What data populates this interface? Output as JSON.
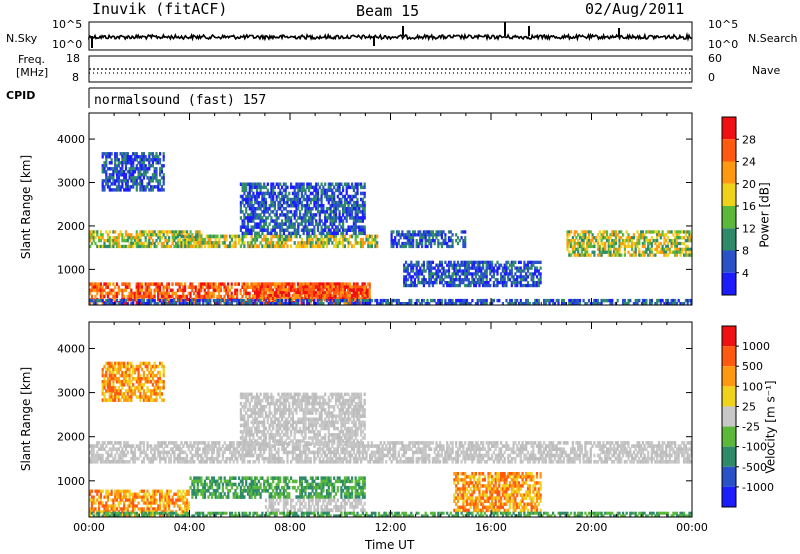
{
  "header": {
    "station": "Inuvik (fitACF)",
    "beam": "Beam 15",
    "date": "02/Aug/2011"
  },
  "params": {
    "nsky_label": "N.Sky",
    "nsky_ticks": [
      "10^5",
      "10^0"
    ],
    "nsearch_label": "N.Search",
    "nsearch_ticks": [
      "10^5",
      "10^0"
    ],
    "freq_label_top": "Freq.",
    "freq_label_bottom": "[MHz]",
    "freq_ticks": [
      "18",
      "8"
    ],
    "nave_label": "Nave",
    "nave_ticks": [
      "60",
      "0"
    ],
    "cpid_label": "CPID",
    "cpid_value": "normalsound (fast) 157"
  },
  "chart_data": [
    {
      "type": "heatmap",
      "name": "power",
      "ylabel": "Slant Range [km]",
      "xlabel": "",
      "xlim": [
        "00:00",
        "24:00"
      ],
      "ylim": [
        180,
        4600
      ],
      "yticks": [
        "1000",
        "2000",
        "3000",
        "4000"
      ],
      "colorbar": {
        "label": "Power [dB]",
        "ticks": [
          "4",
          "8",
          "12",
          "16",
          "20",
          "24",
          "28"
        ],
        "colors": [
          "#1c1cff",
          "#2a52c8",
          "#2f8a6a",
          "#5ab83a",
          "#f0d21a",
          "#ff9a10",
          "#ff5a10",
          "#f01010"
        ]
      },
      "bands": [
        {
          "t0": 0.0,
          "t1": 11.2,
          "r0": 200,
          "r1": 700,
          "level": "high"
        },
        {
          "t0": 6.5,
          "t1": 11.0,
          "r0": 300,
          "r1": 700,
          "level": "high"
        },
        {
          "t0": 0.0,
          "t1": 24.0,
          "r0": 180,
          "r1": 320,
          "level": "low"
        },
        {
          "t0": 0.0,
          "t1": 4.5,
          "r0": 1500,
          "r1": 1900,
          "level": "mid"
        },
        {
          "t0": 3.5,
          "t1": 11.5,
          "r0": 1500,
          "r1": 1800,
          "level": "mid"
        },
        {
          "t0": 12.0,
          "t1": 15.0,
          "r0": 1500,
          "r1": 1900,
          "level": "low"
        },
        {
          "t0": 19.0,
          "t1": 24.0,
          "r0": 1300,
          "r1": 1900,
          "level": "mid"
        },
        {
          "t0": 0.5,
          "t1": 3.0,
          "r0": 2800,
          "r1": 3700,
          "level": "low"
        },
        {
          "t0": 6.0,
          "t1": 11.0,
          "r0": 1800,
          "r1": 3000,
          "level": "low"
        },
        {
          "t0": 12.5,
          "t1": 18.0,
          "r0": 600,
          "r1": 1200,
          "level": "low"
        }
      ]
    },
    {
      "type": "heatmap",
      "name": "velocity",
      "ylabel": "Slant Range [km]",
      "xlabel": "Time UT",
      "xticks": [
        "00:00",
        "04:00",
        "08:00",
        "12:00",
        "16:00",
        "20:00",
        "00:00"
      ],
      "ylim": [
        180,
        4600
      ],
      "yticks": [
        "1000",
        "2000",
        "3000",
        "4000"
      ],
      "colorbar": {
        "label": "Velocity [m s⁻¹]",
        "ticks": [
          "1000",
          "500",
          "100",
          "25",
          "-25",
          "-100",
          "-500",
          "-1000"
        ],
        "colors": [
          "#1c1cff",
          "#2a52c8",
          "#2f8a6a",
          "#5ab83a",
          "#c8c8c8",
          "#f0d21a",
          "#ff9a10",
          "#ff5a10",
          "#f01010"
        ]
      },
      "bands": [
        {
          "t0": 0.0,
          "t1": 24.0,
          "r0": 1400,
          "r1": 1900,
          "level": "gray"
        },
        {
          "t0": 0.0,
          "t1": 4.0,
          "r0": 200,
          "r1": 800,
          "level": "orange"
        },
        {
          "t0": 4.0,
          "t1": 11.0,
          "r0": 600,
          "r1": 1100,
          "level": "green"
        },
        {
          "t0": 7.0,
          "t1": 11.0,
          "r0": 300,
          "r1": 600,
          "level": "gray"
        },
        {
          "t0": 14.5,
          "t1": 18.0,
          "r0": 300,
          "r1": 1200,
          "level": "orange"
        },
        {
          "t0": 0.5,
          "t1": 3.0,
          "r0": 2800,
          "r1": 3700,
          "level": "orange"
        },
        {
          "t0": 6.0,
          "t1": 11.0,
          "r0": 1800,
          "r1": 3000,
          "level": "gray"
        },
        {
          "t0": 0.0,
          "t1": 24.0,
          "r0": 180,
          "r1": 300,
          "level": "green"
        }
      ]
    }
  ]
}
